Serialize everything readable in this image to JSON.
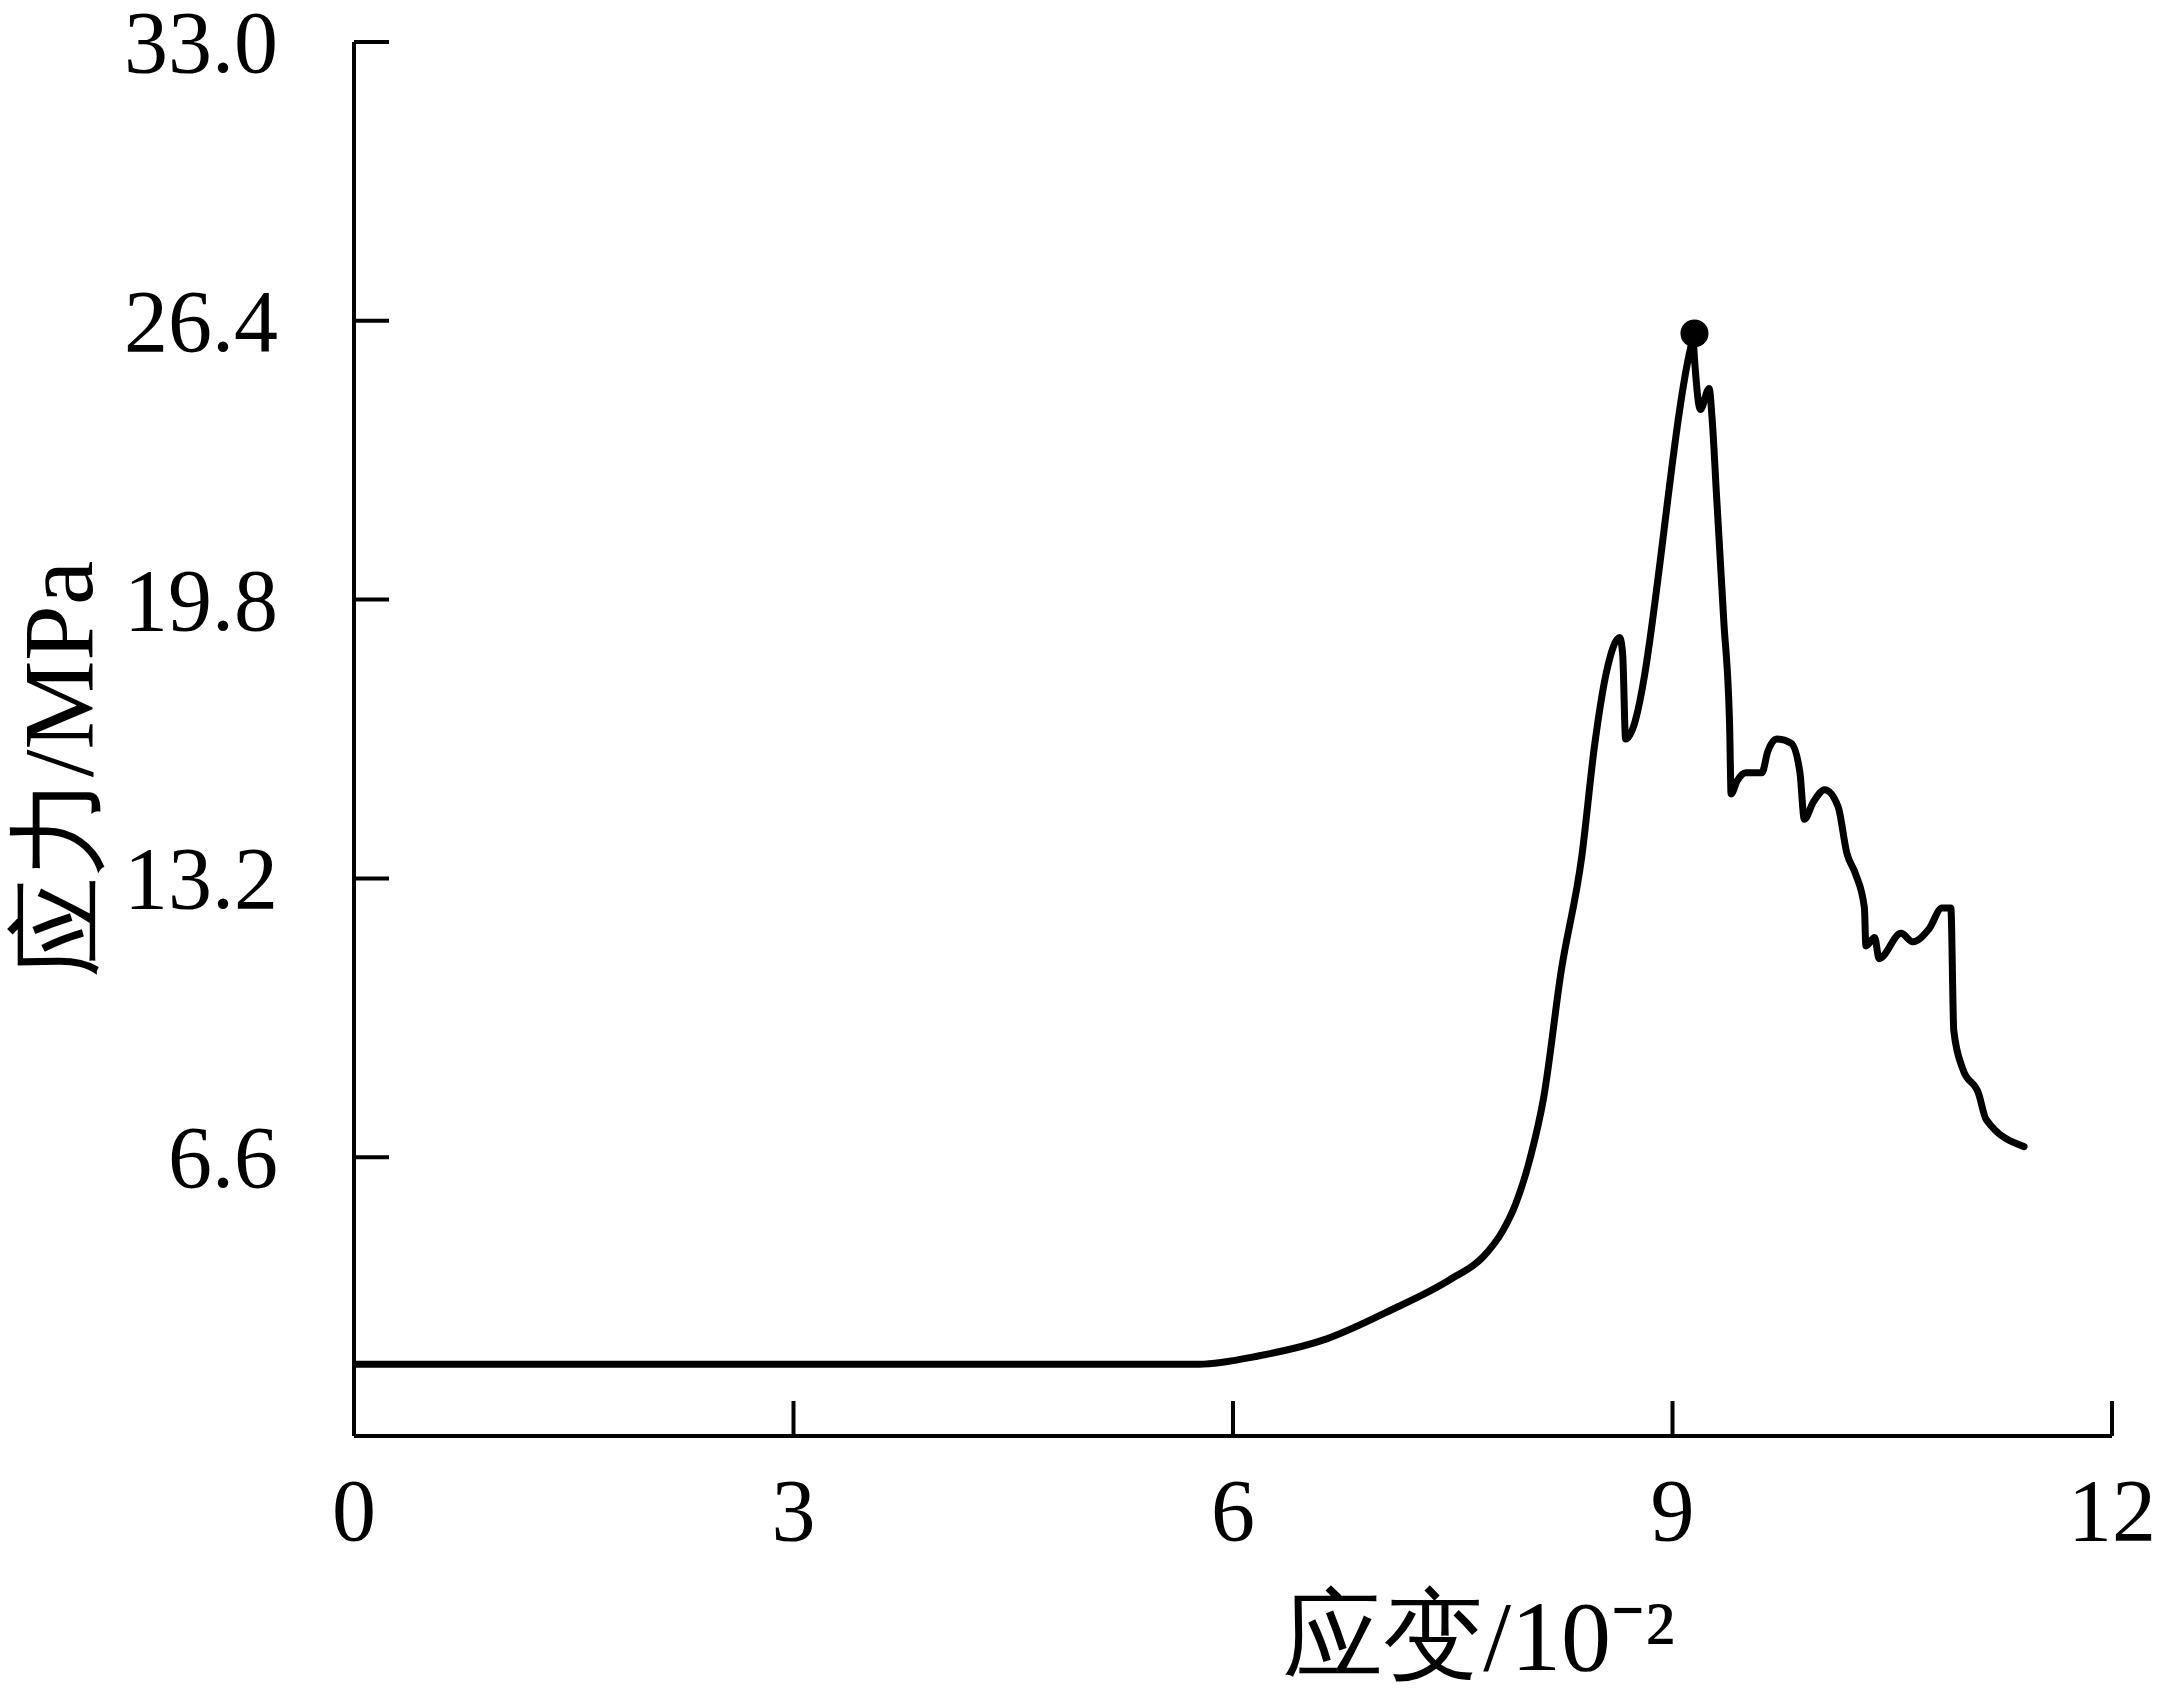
{
  "chart_data": {
    "type": "line",
    "xlabel": "应变/10⁻²",
    "ylabel": "应力/MPa",
    "xlim": [
      0,
      12
    ],
    "xticks": [
      0,
      3,
      6,
      9,
      12
    ],
    "ylim": [
      0,
      33
    ],
    "yticks": [
      6.6,
      13.2,
      19.8,
      26.4,
      {
        "value": 33,
        "label": "33.0"
      }
    ],
    "series": [
      {
        "color": "#000000",
        "marker": "none",
        "line_style": "solid",
        "x": [
          0,
          5.77,
          6.18,
          6.64,
          7.09,
          7.48,
          7.71,
          7.84,
          7.93,
          8.03,
          8.12,
          8.24,
          8.38,
          8.47,
          8.55,
          8.64,
          8.66,
          8.68,
          9.12,
          9.14,
          9.15,
          9.19,
          9.25,
          9.27,
          9.3,
          9.35,
          9.39,
          9.4,
          9.44,
          9.5,
          9.61,
          9.65,
          9.71,
          9.81,
          9.87,
          9.9,
          9.96,
          10.04,
          10.13,
          10.19,
          10.25,
          10.31,
          10.32,
          10.38,
          10.41,
          10.56,
          10.64,
          10.75,
          10.84,
          10.9,
          10.92,
          10.98,
          11.09,
          11.14,
          11.4
        ],
        "values": [
          1.7,
          1.7,
          1.9,
          2.3,
          3.0,
          3.7,
          4.25,
          4.85,
          5.5,
          6.6,
          8.0,
          11.0,
          13.7,
          16.4,
          18.1,
          18.9,
          18.5,
          16.5,
          25.7,
          26.0,
          25.5,
          24.3,
          24.8,
          24.1,
          22.3,
          19.3,
          16.8,
          15.2,
          15.5,
          15.7,
          15.7,
          16.2,
          16.5,
          16.4,
          15.7,
          14.6,
          15.0,
          15.3,
          14.9,
          13.8,
          13.3,
          12.5,
          11.6,
          11.8,
          11.3,
          11.9,
          11.7,
          12.0,
          12.5,
          12.5,
          9.6,
          8.7,
          8.1,
          7.5,
          6.85
        ]
      },
      {
        "type": "scatter",
        "color": "#000000",
        "marker": "circle",
        "x": [
          9.15
        ],
        "values": [
          26.1
        ]
      }
    ]
  }
}
